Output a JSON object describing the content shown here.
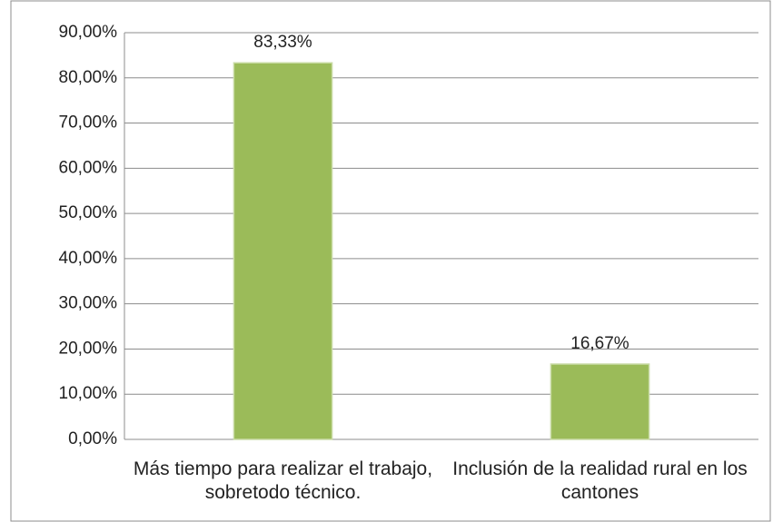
{
  "chart_data": {
    "type": "bar",
    "categories": [
      "Más tiempo para realizar el trabajo, sobretodo técnico.",
      "Inclusión de la realidad rural en los cantones"
    ],
    "values": [
      83.33,
      16.67
    ],
    "value_labels": [
      "83,33%",
      "16,67%"
    ],
    "color": "#9bbb59",
    "ylim": [
      0,
      90
    ],
    "yticks": [
      {
        "value": 0,
        "label": "0,00%"
      },
      {
        "value": 10,
        "label": "10,00%"
      },
      {
        "value": 20,
        "label": "20,00%"
      },
      {
        "value": 30,
        "label": "30,00%"
      },
      {
        "value": 40,
        "label": "40,00%"
      },
      {
        "value": 50,
        "label": "50,00%"
      },
      {
        "value": 60,
        "label": "60,00%"
      },
      {
        "value": 70,
        "label": "70,00%"
      },
      {
        "value": 80,
        "label": "80,00%"
      },
      {
        "value": 90,
        "label": "90,00%"
      }
    ],
    "grid": true
  }
}
